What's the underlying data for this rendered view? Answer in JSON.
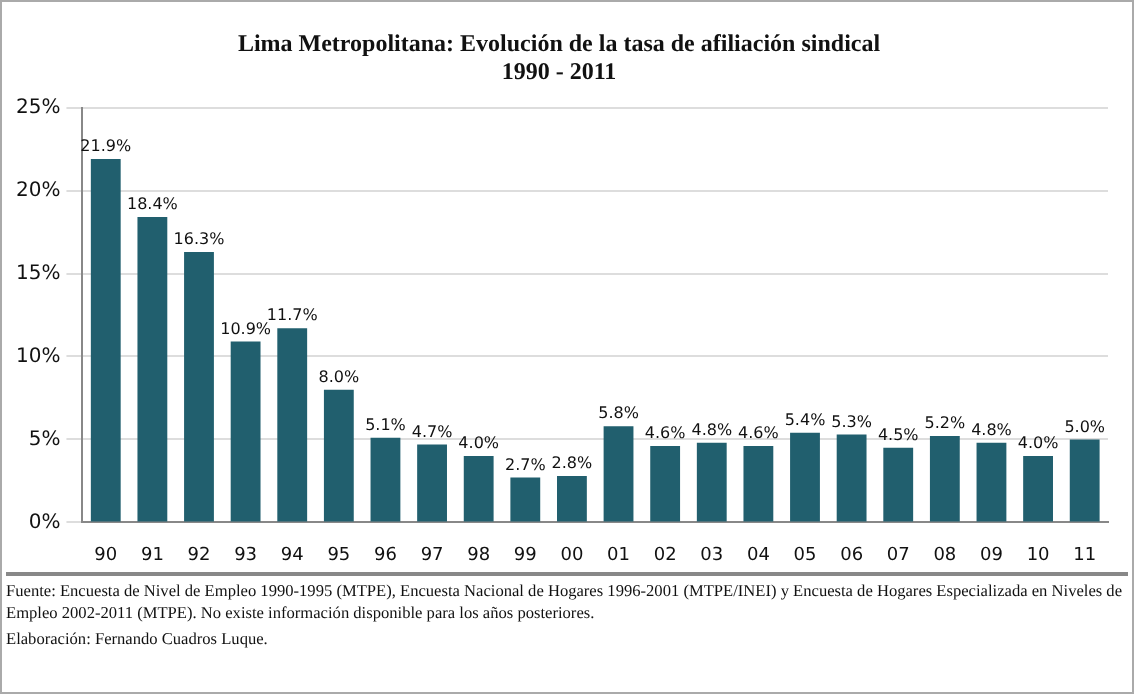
{
  "chart_data": {
    "type": "bar",
    "title": "Lima Metropolitana: Evolución de la tasa de afiliación sindical\n1990 - 2011",
    "categories": [
      "90",
      "91",
      "92",
      "93",
      "94",
      "95",
      "96",
      "97",
      "98",
      "99",
      "00",
      "01",
      "02",
      "03",
      "04",
      "05",
      "06",
      "07",
      "08",
      "09",
      "10",
      "11"
    ],
    "values": [
      21.9,
      18.4,
      16.3,
      10.9,
      11.7,
      8.0,
      5.1,
      4.7,
      4.0,
      2.7,
      2.8,
      5.8,
      4.6,
      4.8,
      4.6,
      5.4,
      5.3,
      4.5,
      5.2,
      4.8,
      4.0,
      5.0
    ],
    "value_labels": [
      "21.9%",
      "18.4%",
      "16.3%",
      "10.9%",
      "11.7%",
      "8.0%",
      "5.1%",
      "4.7%",
      "4.0%",
      "2.7%",
      "2.8%",
      "5.8%",
      "4.6%",
      "4.8%",
      "4.6%",
      "5.4%",
      "5.3%",
      "4.5%",
      "5.2%",
      "4.8%",
      "4.0%",
      "5.0%"
    ],
    "color": "#215f6e",
    "ylim": [
      0,
      25
    ],
    "yticks": [
      {
        "value": 0,
        "label": "0%"
      },
      {
        "value": 5,
        "label": "5%"
      },
      {
        "value": 10,
        "label": "10%"
      },
      {
        "value": 15,
        "label": "15%"
      },
      {
        "value": 20,
        "label": "20%"
      },
      {
        "value": 25,
        "label": "25%"
      }
    ],
    "grid": "y",
    "annotations": [
      "Fuente: Encuesta de Nivel de Empleo 1990-1995 (MTPE), Encuesta Nacional de Hogares 1996-2001 (MTPE/INEI) y Encuesta de Hogares Especializada en Niveles de Empleo 2002-2011 (MTPE). No existe información disponible para los años posteriores.",
      "Elaboración: Fernando Cuadros Luque."
    ]
  }
}
